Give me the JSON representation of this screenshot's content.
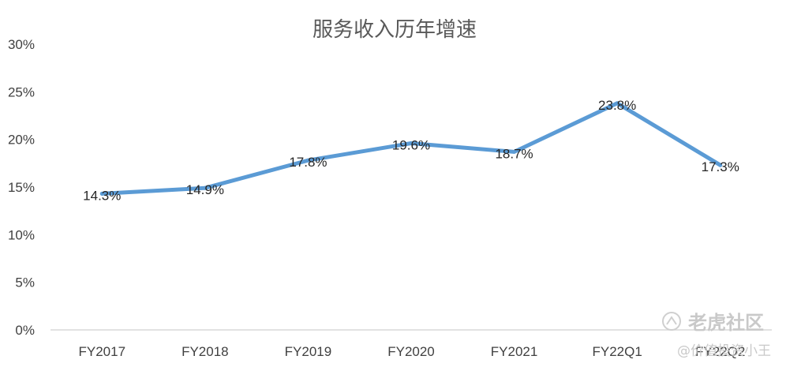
{
  "chart_data": {
    "type": "line",
    "title": "服务收入历年增速",
    "categories": [
      "FY2017",
      "FY2018",
      "FY2019",
      "FY2020",
      "FY2021",
      "FY22Q1",
      "FY22Q2"
    ],
    "series": [
      {
        "values": [
          14.3,
          14.9,
          17.8,
          19.6,
          18.7,
          23.8,
          17.3
        ],
        "labels": [
          "14.3%",
          "14.9%",
          "17.8%",
          "19.6%",
          "18.7%",
          "23.8%",
          "17.3%"
        ]
      }
    ],
    "yticks": [
      0,
      5,
      10,
      15,
      20,
      25,
      30
    ],
    "ytick_labels": [
      "0%",
      "5%",
      "10%",
      "15%",
      "20%",
      "25%",
      "30%"
    ],
    "ylim": [
      0,
      30
    ],
    "grid": false,
    "line_color": "#5b9bd5",
    "axis_color": "#d9d9d9"
  },
  "watermark": {
    "brand": "老虎社区",
    "handle": "@价值投资小王"
  }
}
